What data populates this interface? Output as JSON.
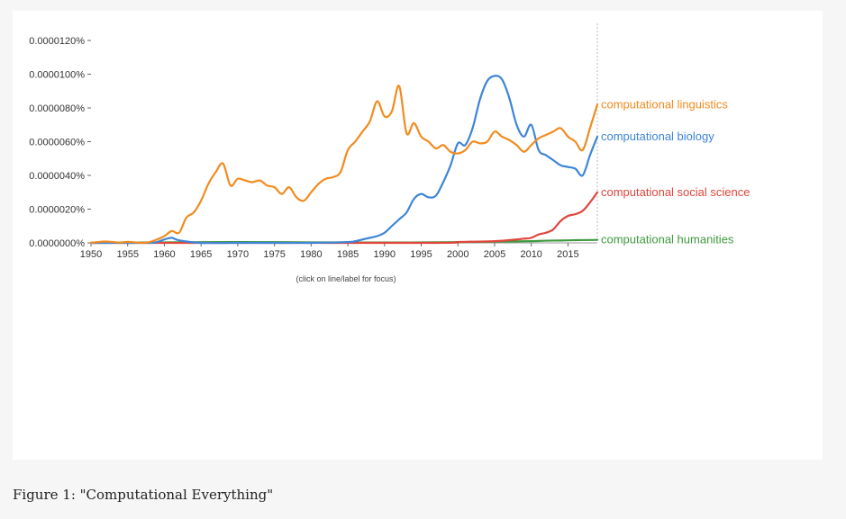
{
  "caption": "Figure 1: \"Computational Everything\"",
  "chart_data": {
    "type": "line",
    "title": "",
    "xlabel": "",
    "ylabel": "",
    "xlim": [
      1950,
      2019
    ],
    "ylim": [
      0,
      1.2e-07
    ],
    "y_tick_labels": [
      "0.0000000%",
      "0.0000020%",
      "0.0000040%",
      "0.0000060%",
      "0.0000080%",
      "0.0000100%",
      "0.0000120%"
    ],
    "y_tick_values": [
      0,
      2e-08,
      4e-08,
      6e-08,
      8e-08,
      1e-07,
      1.2e-07
    ],
    "x_ticks": [
      "1950",
      "1955",
      "1960",
      "1965",
      "1970",
      "1975",
      "1980",
      "1985",
      "1990",
      "1995",
      "2000",
      "2005",
      "2010",
      "2015"
    ],
    "grid": false,
    "legend": "labels at line ends (right)",
    "hint": "(click on line/label for focus)",
    "series": [
      {
        "name": "computational linguistics",
        "color": "#f28b1e",
        "x": [
          1950,
          1951,
          1952,
          1953,
          1954,
          1955,
          1956,
          1957,
          1958,
          1959,
          1960,
          1961,
          1962,
          1963,
          1964,
          1965,
          1966,
          1967,
          1968,
          1969,
          1970,
          1971,
          1972,
          1973,
          1974,
          1975,
          1976,
          1977,
          1978,
          1979,
          1980,
          1981,
          1982,
          1983,
          1984,
          1985,
          1986,
          1987,
          1988,
          1989,
          1990,
          1991,
          1992,
          1993,
          1994,
          1995,
          1996,
          1997,
          1998,
          1999,
          2000,
          2001,
          2002,
          2003,
          2004,
          2005,
          2006,
          2007,
          2008,
          2009,
          2010,
          2011,
          2012,
          2013,
          2014,
          2015,
          2016,
          2017,
          2018,
          2019
        ],
        "y": [
          0,
          5e-10,
          8e-10,
          5e-10,
          2e-10,
          6e-10,
          3e-10,
          0,
          5e-10,
          2e-09,
          4e-09,
          7e-09,
          6e-09,
          1.5e-08,
          1.8e-08,
          2.5e-08,
          3.5e-08,
          4.2e-08,
          4.7e-08,
          3.4e-08,
          3.8e-08,
          3.7e-08,
          3.6e-08,
          3.7e-08,
          3.4e-08,
          3.3e-08,
          2.9e-08,
          3.3e-08,
          2.7e-08,
          2.5e-08,
          3e-08,
          3.5e-08,
          3.8e-08,
          3.9e-08,
          4.2e-08,
          5.5e-08,
          6e-08,
          6.6e-08,
          7.2e-08,
          8.4e-08,
          7.5e-08,
          7.8e-08,
          9.3e-08,
          6.5e-08,
          7.1e-08,
          6.3e-08,
          6e-08,
          5.6e-08,
          5.8e-08,
          5.4e-08,
          5.3e-08,
          5.5e-08,
          6e-08,
          5.9e-08,
          6e-08,
          6.6e-08,
          6.3e-08,
          6.1e-08,
          5.8e-08,
          5.4e-08,
          5.8e-08,
          6.2e-08,
          6.4e-08,
          6.6e-08,
          6.8e-08,
          6.3e-08,
          6e-08,
          5.5e-08,
          6.8e-08,
          8.2e-08
        ]
      },
      {
        "name": "computational biology",
        "color": "#3d85d8",
        "x": [
          1950,
          1955,
          1958,
          1959,
          1960,
          1961,
          1962,
          1965,
          1970,
          1975,
          1980,
          1985,
          1986,
          1987,
          1988,
          1989,
          1990,
          1991,
          1992,
          1993,
          1994,
          1995,
          1996,
          1997,
          1998,
          1999,
          2000,
          2001,
          2002,
          2003,
          2004,
          2005,
          2006,
          2007,
          2008,
          2009,
          2010,
          2011,
          2012,
          2013,
          2014,
          2015,
          2016,
          2017,
          2018,
          2019
        ],
        "y": [
          0,
          0,
          0,
          5e-10,
          2e-09,
          3e-09,
          1.5e-09,
          0,
          0,
          0,
          0,
          5e-10,
          1e-09,
          2e-09,
          3e-09,
          4e-09,
          6e-09,
          1e-08,
          1.4e-08,
          1.8e-08,
          2.6e-08,
          2.9e-08,
          2.7e-08,
          2.8e-08,
          3.6e-08,
          4.6e-08,
          5.9e-08,
          5.8e-08,
          6.8e-08,
          8.5e-08,
          9.6e-08,
          9.9e-08,
          9.7e-08,
          8.6e-08,
          7e-08,
          6.3e-08,
          7e-08,
          5.5e-08,
          5.2e-08,
          4.9e-08,
          4.6e-08,
          4.5e-08,
          4.4e-08,
          4e-08,
          5.2e-08,
          6.3e-08
        ]
      },
      {
        "name": "computational social science",
        "color": "#e0453c",
        "x": [
          1950,
          1995,
          2000,
          2005,
          2008,
          2009,
          2010,
          2011,
          2012,
          2013,
          2014,
          2015,
          2016,
          2017,
          2018,
          2019
        ],
        "y": [
          0,
          0,
          5e-10,
          1e-09,
          2e-09,
          2.5e-09,
          3e-09,
          5e-09,
          6e-09,
          8e-09,
          1.3e-08,
          1.6e-08,
          1.7e-08,
          1.9e-08,
          2.4e-08,
          3e-08
        ]
      },
      {
        "name": "computational humanities",
        "color": "#3e9a3e",
        "x": [
          1950,
          1960,
          1970,
          1980,
          1990,
          2000,
          2005,
          2010,
          2012,
          2014,
          2016,
          2018,
          2019
        ],
        "y": [
          0,
          3e-10,
          5e-10,
          3e-10,
          2e-10,
          4e-10,
          7e-10,
          1e-09,
          1.3e-09,
          1.4e-09,
          1.6e-09,
          1.7e-09,
          1.8e-09
        ]
      }
    ]
  }
}
